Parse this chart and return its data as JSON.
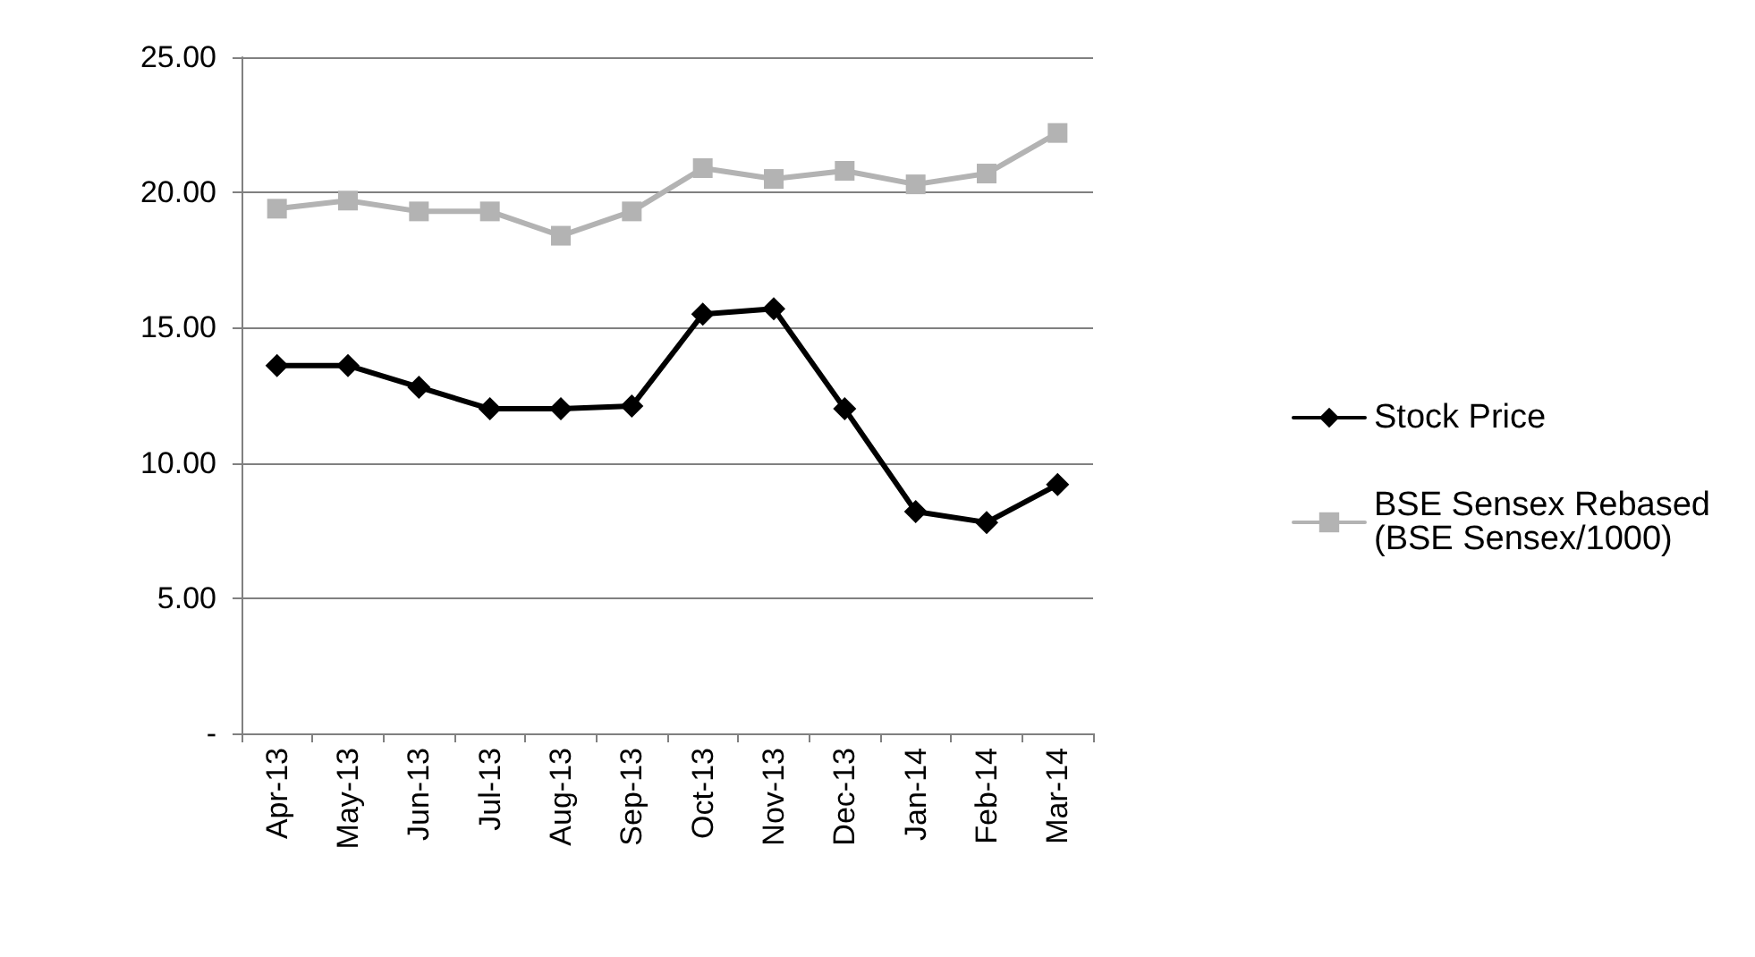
{
  "chart_data": {
    "type": "line",
    "categories": [
      "Apr-13",
      "May-13",
      "Jun-13",
      "Jul-13",
      "Aug-13",
      "Sep-13",
      "Oct-13",
      "Nov-13",
      "Dec-13",
      "Jan-14",
      "Feb-14",
      "Mar-14"
    ],
    "series": [
      {
        "name": "Stock Price",
        "color": "#000000",
        "marker": "diamond",
        "values": [
          13.6,
          13.6,
          12.8,
          12.0,
          12.0,
          12.1,
          15.5,
          15.7,
          12.0,
          8.2,
          7.8,
          9.2
        ]
      },
      {
        "name": "BSE Sensex Rebased (BSE Sensex/1000)",
        "color": "#b3b3b3",
        "marker": "square",
        "values": [
          19.4,
          19.7,
          19.3,
          19.3,
          18.4,
          19.3,
          20.9,
          20.5,
          20.8,
          20.3,
          20.7,
          22.2
        ]
      }
    ],
    "ylim": [
      0,
      25
    ],
    "yticks": [
      {
        "value": 0,
        "label": "-"
      },
      {
        "value": 5,
        "label": "5.00"
      },
      {
        "value": 10,
        "label": "10.00"
      },
      {
        "value": 15,
        "label": "15.00"
      },
      {
        "value": 20,
        "label": "20.00"
      },
      {
        "value": 25,
        "label": "25.00"
      }
    ],
    "grid": "y",
    "legend": "right",
    "line_style": "solid"
  }
}
